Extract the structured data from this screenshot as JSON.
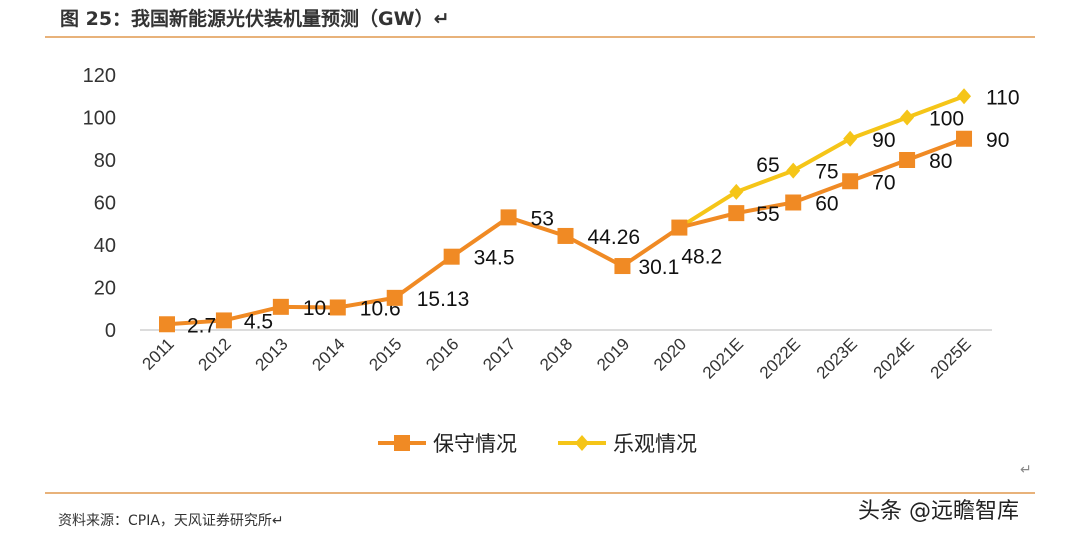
{
  "title": "图 25：我国新能源光伏装机量预测（GW）↵",
  "source": "资料来源：CPIA，天风证券研究所↵",
  "watermark": "头条 @远瞻智库",
  "return_mark": "↵",
  "chart_data": {
    "type": "line",
    "title": "图 25：我国新能源光伏装机量预测（GW）",
    "categories": [
      "2011",
      "2012",
      "2013",
      "2014",
      "2015",
      "2016",
      "2017",
      "2018",
      "2019",
      "2020",
      "2021E",
      "2022E",
      "2023E",
      "2024E",
      "2025E"
    ],
    "ylim": [
      0,
      120
    ],
    "yticks": [
      0,
      20,
      40,
      60,
      80,
      100,
      120
    ],
    "grid": false,
    "legend": "bottom",
    "series": [
      {
        "name": "保守情况",
        "color": "#f08a24",
        "marker": "square",
        "values": [
          2.7,
          4.5,
          10.9,
          10.6,
          15.13,
          34.5,
          53,
          44.26,
          30.1,
          48.2,
          55,
          60,
          70,
          80,
          90
        ],
        "labels": [
          "2.7",
          "4.5",
          "10.9",
          "10.6",
          "15.13",
          "34.5",
          "53",
          "44.26",
          "30.1",
          "48.2",
          "55",
          "60",
          "70",
          "80",
          "90"
        ]
      },
      {
        "name": "乐观情况",
        "color": "#f5c518",
        "marker": "diamond",
        "values": [
          null,
          null,
          null,
          null,
          null,
          null,
          null,
          null,
          null,
          48.2,
          65,
          75,
          90,
          100,
          110
        ],
        "labels": [
          null,
          null,
          null,
          null,
          null,
          null,
          null,
          null,
          null,
          null,
          "65",
          "75",
          "90",
          "100",
          "110"
        ]
      }
    ]
  }
}
